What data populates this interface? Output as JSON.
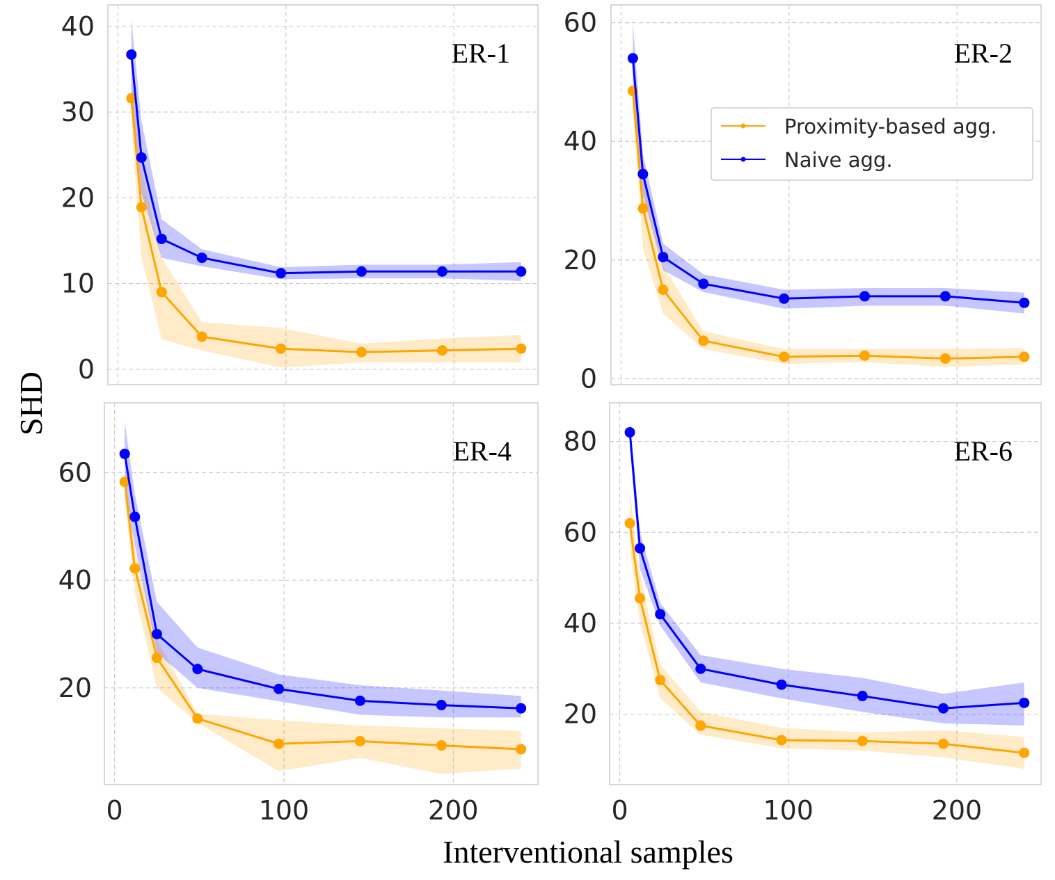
{
  "figure": {
    "xlabel": "Interventional samples",
    "ylabel": "SHD"
  },
  "legend": {
    "items": [
      {
        "label": "Proximity-based agg.",
        "color": "#FFA500"
      },
      {
        "label": "Naive agg.",
        "color": "#0000FF"
      }
    ]
  },
  "colors": {
    "proximity": "#FFA500",
    "naive": "#0000FF",
    "grid": "#cccccc",
    "frame": "#cccccc"
  },
  "chart_data": [
    {
      "type": "line",
      "title": "ER-1",
      "xlabel": "Interventional samples",
      "ylabel": "SHD",
      "xlim": [
        -6,
        250
      ],
      "ylim": [
        -1.8,
        42.5
      ],
      "xticks": [
        0,
        100,
        200
      ],
      "yticks": [
        0,
        10,
        20,
        30,
        40
      ],
      "series": [
        {
          "name": "Naive agg.",
          "x": [
            8,
            14,
            26,
            50,
            97,
            145,
            193,
            240
          ],
          "y": [
            36.7,
            24.7,
            15.2,
            13.0,
            11.2,
            11.4,
            11.4,
            11.4
          ],
          "lower": [
            32.5,
            20.5,
            13.0,
            12.0,
            10.5,
            10.6,
            10.6,
            10.3
          ],
          "upper": [
            40.8,
            29.0,
            17.5,
            14.0,
            11.9,
            12.2,
            12.2,
            12.5
          ]
        },
        {
          "name": "Proximity-based agg.",
          "x": [
            8,
            14,
            26,
            50,
            97,
            145,
            193,
            240
          ],
          "y": [
            31.6,
            18.9,
            9.0,
            3.8,
            2.4,
            2.0,
            2.2,
            2.4
          ],
          "lower": [
            28.5,
            13.0,
            3.5,
            2.2,
            0.2,
            0.8,
            0.8,
            0.8
          ],
          "upper": [
            34.5,
            23.5,
            13.0,
            5.5,
            4.8,
            3.0,
            3.6,
            4.0
          ]
        }
      ]
    },
    {
      "type": "line",
      "title": "ER-2",
      "xlabel": "Interventional samples",
      "ylabel": "SHD",
      "xlim": [
        -6,
        250
      ],
      "ylim": [
        -1.0,
        63.0
      ],
      "xticks": [
        0,
        100,
        200
      ],
      "yticks": [
        0,
        20,
        40,
        60
      ],
      "series": [
        {
          "name": "Naive agg.",
          "x": [
            7,
            13,
            25,
            49,
            97,
            145,
            193,
            240
          ],
          "y": [
            54.0,
            34.5,
            20.5,
            16.0,
            13.5,
            13.9,
            13.9,
            12.8
          ],
          "lower": [
            48.5,
            31.0,
            18.3,
            14.6,
            11.8,
            12.3,
            12.3,
            11.0
          ],
          "upper": [
            60.0,
            38.0,
            22.8,
            17.6,
            15.0,
            15.3,
            15.3,
            14.5
          ]
        },
        {
          "name": "Proximity-based agg.",
          "x": [
            7,
            13,
            25,
            49,
            97,
            145,
            193,
            240
          ],
          "y": [
            48.5,
            28.7,
            15.0,
            6.4,
            3.7,
            3.9,
            3.4,
            3.7
          ],
          "lower": [
            45.0,
            22.0,
            11.0,
            5.0,
            2.5,
            2.8,
            2.0,
            2.4
          ],
          "upper": [
            53.0,
            34.0,
            19.0,
            8.0,
            5.0,
            5.0,
            5.0,
            5.2
          ]
        }
      ]
    },
    {
      "type": "line",
      "title": "ER-4",
      "xlabel": "Interventional samples",
      "ylabel": "SHD",
      "xlim": [
        -6,
        250
      ],
      "ylim": [
        2.0,
        73.0
      ],
      "xticks": [
        0,
        100,
        200
      ],
      "yticks": [
        20,
        40,
        60
      ],
      "series": [
        {
          "name": "Naive agg.",
          "x": [
            6,
            12,
            25,
            49,
            97,
            145,
            193,
            240
          ],
          "y": [
            63.5,
            51.8,
            30.0,
            23.5,
            19.8,
            17.6,
            16.8,
            16.2
          ],
          "lower": [
            57.0,
            46.5,
            26.5,
            20.0,
            17.5,
            15.0,
            14.5,
            14.5
          ],
          "upper": [
            69.5,
            56.0,
            36.0,
            27.5,
            22.5,
            20.5,
            19.5,
            18.5
          ]
        },
        {
          "name": "Proximity-based agg.",
          "x": [
            6,
            12,
            25,
            49,
            97,
            145,
            193,
            240
          ],
          "y": [
            58.3,
            42.2,
            25.6,
            14.3,
            9.6,
            10.1,
            9.3,
            8.6
          ],
          "lower": [
            55.0,
            37.5,
            20.0,
            13.5,
            4.5,
            7.0,
            4.0,
            5.0
          ],
          "upper": [
            61.0,
            46.0,
            29.0,
            15.2,
            14.0,
            13.0,
            12.5,
            12.0
          ]
        }
      ]
    },
    {
      "type": "line",
      "title": "ER-6",
      "xlabel": "Interventional samples",
      "ylabel": "SHD",
      "xlim": [
        -6,
        250
      ],
      "ylim": [
        4.5,
        88.5
      ],
      "xticks": [
        0,
        100,
        200
      ],
      "yticks": [
        20,
        40,
        60,
        80
      ],
      "series": [
        {
          "name": "Naive agg.",
          "x": [
            6,
            12,
            24,
            48,
            96,
            144,
            192,
            240
          ],
          "y": [
            82.0,
            56.5,
            42.0,
            30.0,
            26.5,
            24.0,
            21.3,
            22.5
          ],
          "lower": [
            79.0,
            52.0,
            39.5,
            27.0,
            23.5,
            20.5,
            18.0,
            17.5
          ],
          "upper": [
            85.0,
            60.0,
            44.5,
            33.0,
            30.0,
            28.0,
            24.5,
            27.0
          ]
        },
        {
          "name": "Proximity-based agg.",
          "x": [
            6,
            12,
            24,
            48,
            96,
            144,
            192,
            240
          ],
          "y": [
            62.0,
            45.5,
            27.5,
            17.5,
            14.3,
            14.1,
            13.5,
            11.5
          ],
          "lower": [
            56.0,
            40.0,
            23.5,
            15.5,
            12.5,
            12.0,
            10.5,
            8.0
          ],
          "upper": [
            69.0,
            51.0,
            31.0,
            20.5,
            17.0,
            16.0,
            16.5,
            15.0
          ]
        }
      ]
    }
  ]
}
